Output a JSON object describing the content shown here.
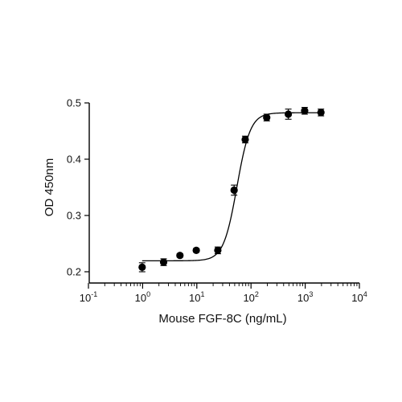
{
  "chart_data": {
    "type": "scatter",
    "title": "",
    "xlabel": "Mouse FGF-8C (ng/mL)",
    "ylabel": "OD 450nm",
    "x_scale": "log",
    "xlim": [
      0.1,
      10000
    ],
    "ylim": [
      0.18,
      0.5
    ],
    "x_ticks": [
      {
        "value": 0.1,
        "base": "10",
        "exp": "-1"
      },
      {
        "value": 1,
        "base": "10",
        "exp": "0"
      },
      {
        "value": 10,
        "base": "10",
        "exp": "1"
      },
      {
        "value": 100,
        "base": "10",
        "exp": "2"
      },
      {
        "value": 1000,
        "base": "10",
        "exp": "3"
      },
      {
        "value": 10000,
        "base": "10",
        "exp": "4"
      }
    ],
    "y_ticks": [
      {
        "value": 0.2,
        "label": "0.2"
      },
      {
        "value": 0.3,
        "label": "0.3"
      },
      {
        "value": 0.4,
        "label": "0.4"
      },
      {
        "value": 0.5,
        "label": "0.5"
      }
    ],
    "grid": false,
    "legend": "none",
    "series": [
      {
        "points": [
          {
            "x": 0.98,
            "y": 0.208,
            "err": 0.008
          },
          {
            "x": 2.44,
            "y": 0.217,
            "err": 0.006
          },
          {
            "x": 4.88,
            "y": 0.229,
            "err": 0.003
          },
          {
            "x": 9.77,
            "y": 0.238,
            "err": 0.003
          },
          {
            "x": 24.4,
            "y": 0.238,
            "err": 0.006
          },
          {
            "x": 48.8,
            "y": 0.345,
            "err": 0.009
          },
          {
            "x": 78.1,
            "y": 0.435,
            "err": 0.006
          },
          {
            "x": 195,
            "y": 0.474,
            "err": 0.006
          },
          {
            "x": 488,
            "y": 0.48,
            "err": 0.009
          },
          {
            "x": 977,
            "y": 0.486,
            "err": 0.006
          },
          {
            "x": 1953,
            "y": 0.483,
            "err": 0.006
          }
        ],
        "fit": {
          "model": "4PL",
          "bottom": 0.2195,
          "top": 0.4825,
          "ec50": 55,
          "hill": 3.5,
          "x_range": [
            0.98,
            1953
          ]
        }
      }
    ]
  }
}
